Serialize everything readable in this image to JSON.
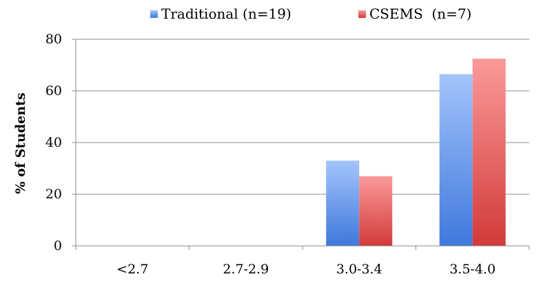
{
  "chart_data": {
    "type": "bar",
    "categories": [
      "<2.7",
      "2.7-2.9",
      "3.0-3.4",
      "3.5-4.0"
    ],
    "series": [
      {
        "name": "Traditional (n=19)",
        "values": [
          0,
          0,
          33,
          66.5
        ],
        "color": "#5b8fe8"
      },
      {
        "name": "CSEMS  (n=7)",
        "values": [
          0,
          0,
          27,
          72.5
        ],
        "color": "#e85b5b"
      }
    ],
    "xlabel": "",
    "ylabel": "% of Students",
    "ylim": [
      0,
      80
    ],
    "yticks": [
      0,
      20,
      40,
      60,
      80
    ],
    "grid": true,
    "legend_position": "top"
  }
}
